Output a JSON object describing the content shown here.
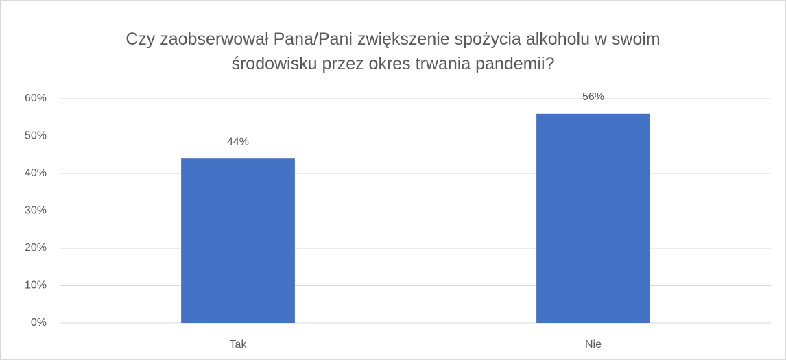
{
  "chart_data": {
    "type": "bar",
    "title": "Czy zaobserwował Pana/Pani zwiększenie spożycia alkoholu w swoim środowisku przez okres trwania pandemii?",
    "categories": [
      "Tak",
      "Nie"
    ],
    "values": [
      44,
      56
    ],
    "value_labels": [
      "44%",
      "56%"
    ],
    "color": "#4472c4",
    "ylim": [
      0,
      60
    ],
    "yticks": [
      {
        "value": 0,
        "label": "0%"
      },
      {
        "value": 10,
        "label": "10%"
      },
      {
        "value": 20,
        "label": "20%"
      },
      {
        "value": 30,
        "label": "30%"
      },
      {
        "value": 40,
        "label": "40%"
      },
      {
        "value": 50,
        "label": "50%"
      },
      {
        "value": 60,
        "label": "60%"
      }
    ],
    "grid": true
  }
}
